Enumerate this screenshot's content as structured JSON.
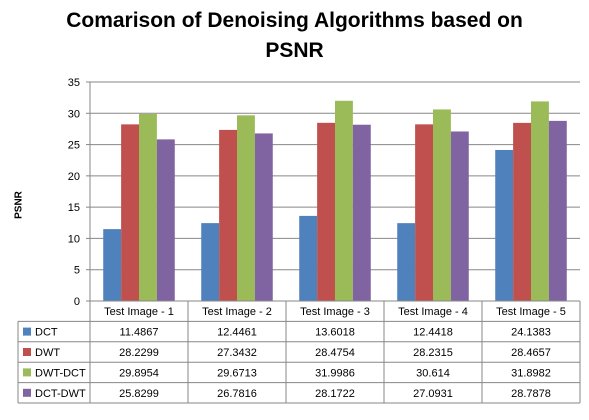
{
  "chart_data": {
    "type": "bar",
    "title_line1": "Comarison of Denoising Algorithms based on",
    "title_line2": "PSNR",
    "ylabel": "PSNR",
    "xlabel": "",
    "ylim": [
      0,
      35
    ],
    "yticks": [
      0,
      5,
      10,
      15,
      20,
      25,
      30,
      35
    ],
    "grid": true,
    "legend": "data-table",
    "categories": [
      "Test Image - 1",
      "Test Image - 2",
      "Test Image - 3",
      "Test Image - 4",
      "Test Image - 5"
    ],
    "series": [
      {
        "name": "DCT",
        "color": "#4F81BD",
        "values": [
          11.4867,
          12.4461,
          13.6018,
          12.4418,
          24.1383
        ],
        "labels": [
          "11.4867",
          "12.4461",
          "13.6018",
          "12.4418",
          "24.1383"
        ]
      },
      {
        "name": "DWT",
        "color": "#C0504D",
        "values": [
          28.2299,
          27.3432,
          28.4754,
          28.2315,
          28.4657
        ],
        "labels": [
          "28.2299",
          "27.3432",
          "28.4754",
          "28.2315",
          "28.4657"
        ]
      },
      {
        "name": "DWT-DCT",
        "color": "#9BBB59",
        "values": [
          29.8954,
          29.6713,
          31.9986,
          30.614,
          31.8982
        ],
        "labels": [
          "29.8954",
          "29.6713",
          "31.9986",
          "30.614",
          "31.8982"
        ]
      },
      {
        "name": "DCT-DWT",
        "color": "#8064A2",
        "values": [
          25.8299,
          26.7816,
          28.1722,
          27.0931,
          28.7878
        ],
        "labels": [
          "25.8299",
          "26.7816",
          "28.1722",
          "27.0931",
          "28.7878"
        ]
      }
    ]
  }
}
